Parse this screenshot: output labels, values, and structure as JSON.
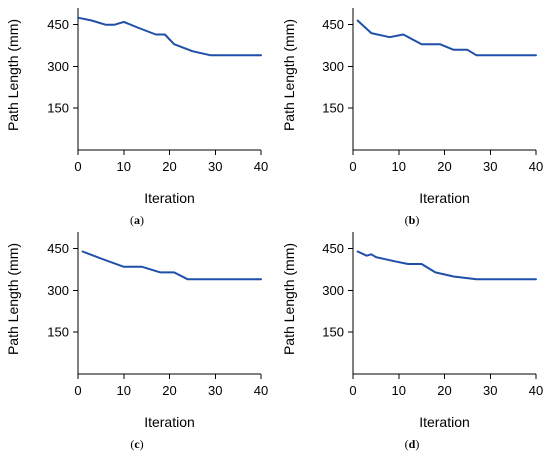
{
  "chart_data": [
    {
      "type": "line",
      "panel_label": "(a)",
      "xlabel": "Iteration",
      "ylabel": "Path Length (mm)",
      "xlim": [
        0,
        40
      ],
      "ylim": [
        0,
        510
      ],
      "xticks": [
        0,
        10,
        20,
        30,
        40
      ],
      "yticks": [
        150,
        300,
        450
      ],
      "grid": false,
      "color": "#1f4fa8",
      "series": [
        {
          "x": [
            0,
            3,
            6,
            8,
            10,
            13,
            17,
            19,
            21,
            25,
            29,
            31,
            40
          ],
          "y": [
            475,
            465,
            450,
            450,
            460,
            440,
            415,
            415,
            380,
            355,
            340,
            340,
            340
          ]
        }
      ]
    },
    {
      "type": "line",
      "panel_label": "(b)",
      "xlabel": "Iteration",
      "ylabel": "Path Length (mm)",
      "xlim": [
        0,
        40
      ],
      "ylim": [
        0,
        510
      ],
      "xticks": [
        0,
        10,
        20,
        30,
        40
      ],
      "yticks": [
        150,
        300,
        450
      ],
      "grid": false,
      "color": "#1f4fa8",
      "series": [
        {
          "x": [
            1,
            4,
            8,
            11,
            15,
            19,
            22,
            25,
            27,
            40
          ],
          "y": [
            465,
            420,
            405,
            415,
            380,
            380,
            360,
            360,
            340,
            340
          ]
        }
      ]
    },
    {
      "type": "line",
      "panel_label": "(c)",
      "xlabel": "Iteration",
      "ylabel": "Path Length (mm)",
      "xlim": [
        0,
        40
      ],
      "ylim": [
        0,
        510
      ],
      "xticks": [
        0,
        10,
        20,
        30,
        40
      ],
      "yticks": [
        150,
        300,
        450
      ],
      "grid": false,
      "color": "#1f4fa8",
      "series": [
        {
          "x": [
            1,
            5,
            10,
            14,
            18,
            21,
            24,
            40
          ],
          "y": [
            440,
            415,
            385,
            385,
            365,
            365,
            340,
            340
          ]
        }
      ]
    },
    {
      "type": "line",
      "panel_label": "(d)",
      "xlabel": "Iteration",
      "ylabel": "Path Length (mm)",
      "xlim": [
        0,
        40
      ],
      "ylim": [
        0,
        510
      ],
      "xticks": [
        0,
        10,
        20,
        30,
        40
      ],
      "yticks": [
        150,
        300,
        450
      ],
      "grid": false,
      "color": "#1f4fa8",
      "series": [
        {
          "x": [
            1,
            3,
            4,
            5,
            9,
            12,
            15,
            18,
            22,
            27,
            40
          ],
          "y": [
            440,
            425,
            430,
            420,
            405,
            395,
            395,
            365,
            350,
            340,
            340
          ]
        }
      ]
    }
  ]
}
